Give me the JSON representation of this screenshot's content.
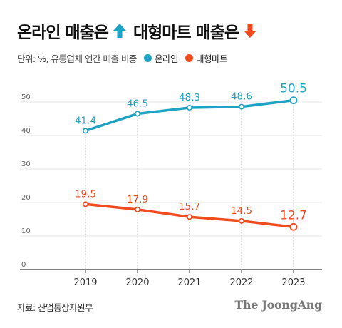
{
  "header": {
    "title_part1": "온라인 매출은",
    "title_part2": "대형마트 매출은",
    "arrow_up_icon": "arrow-up-icon",
    "arrow_down_icon": "arrow-down-icon",
    "subtitle": "단위: %, 유통업체 연간 매출 비중"
  },
  "colors": {
    "online": "#1fa3c4",
    "mart": "#f04a1f",
    "grid": "#e6e6e6",
    "axis_text": "#666666"
  },
  "footer": {
    "source": "자료: 산업통상자원부",
    "brand": "The JoongAng"
  },
  "chart_data": {
    "type": "line",
    "categories": [
      "2019",
      "2020",
      "2021",
      "2022",
      "2023"
    ],
    "ylim": [
      0,
      50
    ],
    "yticks": [
      0,
      10,
      20,
      30,
      40,
      50
    ],
    "xlabel": "",
    "ylabel": "",
    "legend_position": "top-left",
    "series": [
      {
        "name": "온라인",
        "color": "#1fa3c4",
        "values": [
          41.4,
          46.5,
          48.3,
          48.6,
          50.5
        ]
      },
      {
        "name": "대형마트",
        "color": "#f04a1f",
        "values": [
          19.5,
          17.9,
          15.7,
          14.5,
          12.7
        ]
      }
    ]
  }
}
